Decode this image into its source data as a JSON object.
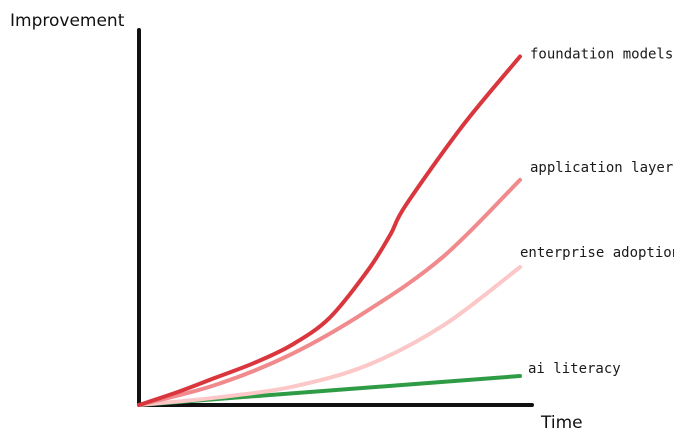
{
  "chart_data": {
    "type": "line",
    "title": "",
    "xlabel": "Time",
    "ylabel": "Improvement",
    "grid": false,
    "legend": "direct labels at line ends",
    "xlim": [
      0,
      10
    ],
    "ylim": [
      0,
      10
    ],
    "series": [
      {
        "name": "foundation models",
        "color": "#d9363e",
        "x": [
          0,
          1,
          2,
          3,
          4,
          5,
          6,
          6.6,
          7,
          8.5,
          10
        ],
        "values": [
          0,
          0.35,
          0.75,
          1.15,
          1.65,
          2.4,
          3.7,
          4.7,
          5.5,
          7.7,
          9.6
        ]
      },
      {
        "name": "application layer ux",
        "color": "#f08a8c",
        "x": [
          0,
          2,
          4,
          6,
          8,
          10
        ],
        "values": [
          0,
          0.55,
          1.4,
          2.6,
          4.1,
          6.2
        ]
      },
      {
        "name": "enterprise adoption",
        "color": "#fbc7c7",
        "x": [
          0,
          2,
          4,
          6,
          8,
          10
        ],
        "values": [
          0,
          0.2,
          0.5,
          1.1,
          2.2,
          3.8
        ]
      },
      {
        "name": "ai literacy",
        "color": "#2e9b45",
        "x": [
          0,
          10
        ],
        "values": [
          0,
          0.8
        ]
      }
    ]
  }
}
